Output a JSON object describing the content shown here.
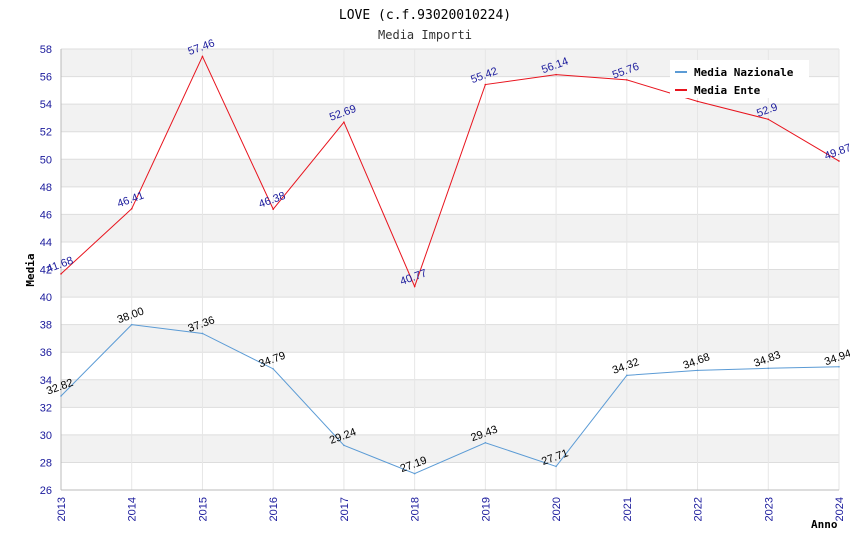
{
  "chart_data": {
    "type": "line",
    "title": "LOVE (c.f.93020010224)",
    "subtitle": "Media Importi",
    "xlabel": "Anno",
    "ylabel": "Media",
    "x": [
      "2013",
      "2014",
      "2015",
      "2016",
      "2017",
      "2018",
      "2019",
      "2020",
      "2021",
      "2022",
      "2023",
      "2024"
    ],
    "ylim": [
      26,
      58
    ],
    "ytick_step": 2,
    "grid": true,
    "legend_position": "top-right",
    "series": [
      {
        "name": "Media Nazionale",
        "color": "#5b9bd5",
        "label_color": "#000000",
        "values": [
          32.82,
          38.0,
          37.36,
          34.79,
          29.24,
          27.19,
          29.43,
          27.71,
          34.32,
          34.68,
          34.83,
          34.94
        ],
        "labels": [
          "32.82",
          "38.00",
          "37.36",
          "34.79",
          "29.24",
          "27.19",
          "29.43",
          "27.71",
          "34.32",
          "34.68",
          "34.83",
          "34.94"
        ]
      },
      {
        "name": "Media Ente",
        "color": "#e8141e",
        "label_color": "#1a1a9c",
        "values": [
          41.68,
          46.41,
          57.46,
          46.38,
          52.69,
          40.77,
          55.42,
          56.14,
          55.76,
          54.2,
          52.9,
          49.87
        ],
        "labels": [
          "41.68",
          "46.41",
          "57.46",
          "46.38",
          "52.69",
          "40.77",
          "55.42",
          "56.14",
          "55.76",
          "",
          "52.9",
          "49.87"
        ]
      }
    ]
  }
}
